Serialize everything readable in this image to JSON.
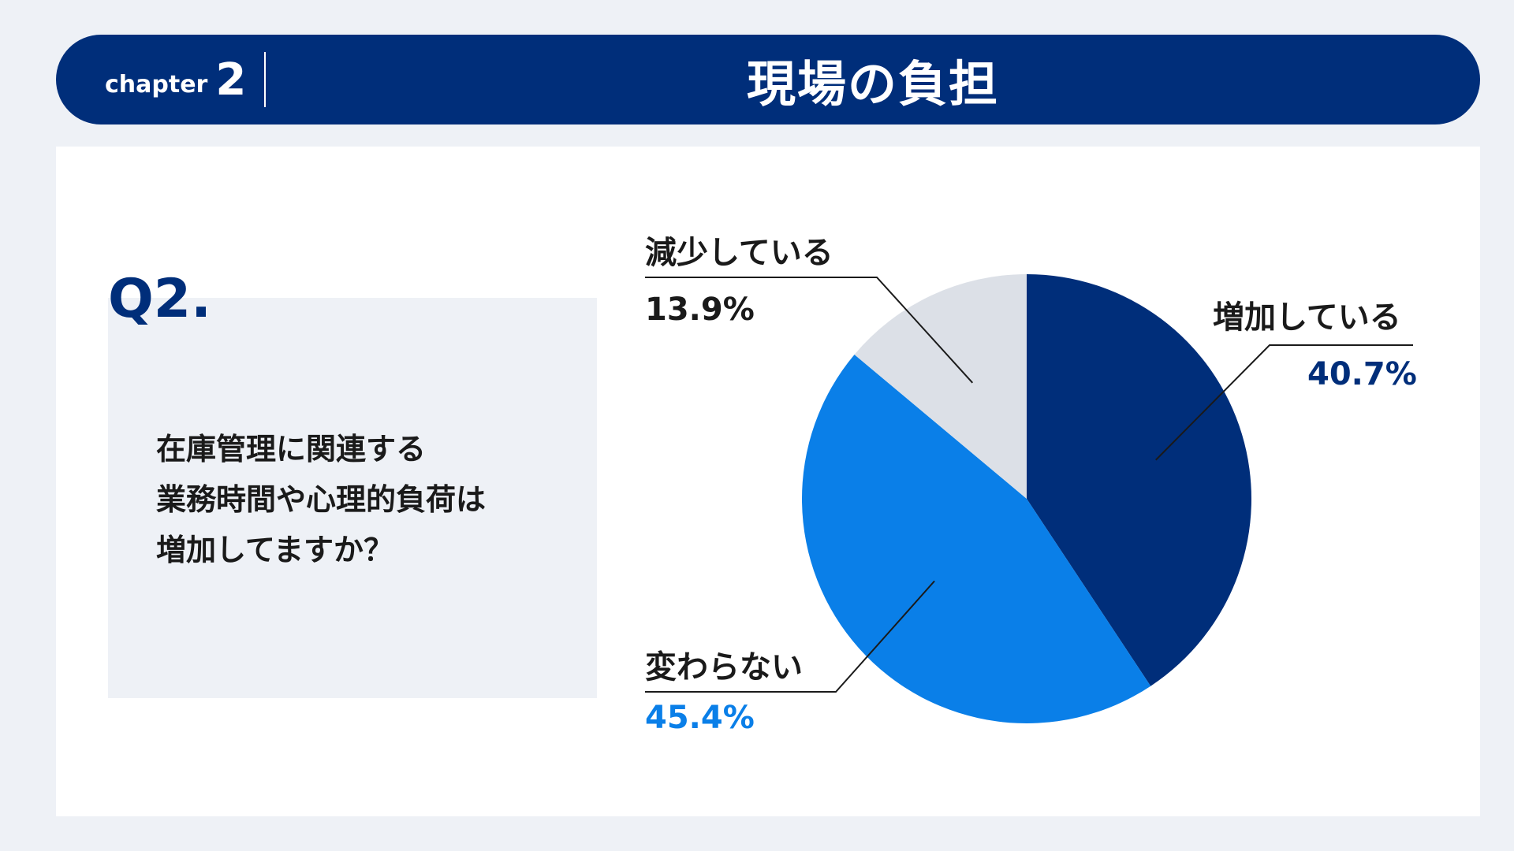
{
  "header": {
    "chapter_word": "chapter",
    "chapter_number": "2",
    "title": "現場の負担"
  },
  "question": {
    "label": "Q2.",
    "lines": [
      "在庫管理に関連する",
      "業務時間や心理的負荷は",
      "増加してますか？"
    ]
  },
  "chart_data": {
    "type": "pie",
    "categories": [
      "増加している",
      "変わらない",
      "減少している"
    ],
    "values": [
      40.7,
      45.4,
      13.9
    ],
    "value_labels": [
      "40.7%",
      "45.4%",
      "13.9%"
    ],
    "colors": [
      "#002e7a",
      "#0a7fe8",
      "#dce0e7"
    ],
    "value_label_colors": [
      "#002e7a",
      "#0a7fe8",
      "#1a1a1a"
    ],
    "start": "12 o'clock",
    "direction": "clockwise"
  }
}
